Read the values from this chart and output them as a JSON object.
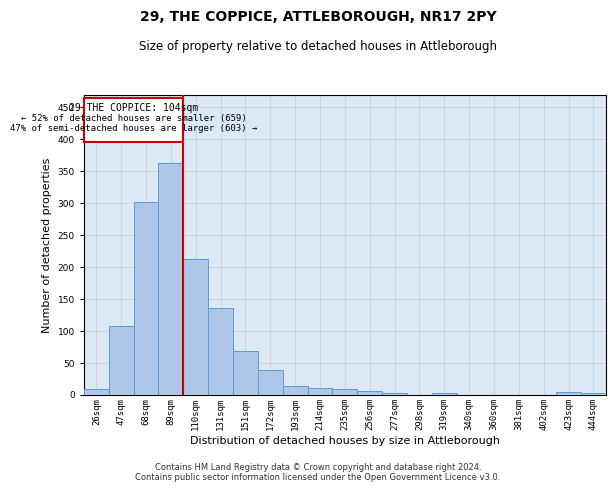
{
  "title": "29, THE COPPICE, ATTLEBOROUGH, NR17 2PY",
  "subtitle": "Size of property relative to detached houses in Attleborough",
  "xlabel": "Distribution of detached houses by size in Attleborough",
  "ylabel": "Number of detached properties",
  "footer_line1": "Contains HM Land Registry data © Crown copyright and database right 2024.",
  "footer_line2": "Contains public sector information licensed under the Open Government Licence v3.0.",
  "categories": [
    "26sqm",
    "47sqm",
    "68sqm",
    "89sqm",
    "110sqm",
    "131sqm",
    "151sqm",
    "172sqm",
    "193sqm",
    "214sqm",
    "235sqm",
    "256sqm",
    "277sqm",
    "298sqm",
    "319sqm",
    "340sqm",
    "360sqm",
    "381sqm",
    "402sqm",
    "423sqm",
    "444sqm"
  ],
  "values": [
    8,
    108,
    301,
    362,
    213,
    136,
    68,
    38,
    13,
    10,
    9,
    6,
    2,
    0,
    2,
    0,
    0,
    0,
    0,
    4,
    3
  ],
  "bar_color": "#aec6e8",
  "bar_edge_color": "#5b9bd5",
  "grid_color": "#cccccc",
  "bg_color": "#dce9f5",
  "annotation_box_color": "#cc0000",
  "annotation_line_color": "#cc0000",
  "property_label": "29 THE COPPICE: 104sqm",
  "smaller_pct": 52,
  "smaller_count": 659,
  "larger_pct": 47,
  "larger_count": 603,
  "vline_x": 3.5,
  "ylim": [
    0,
    470
  ],
  "yticks": [
    0,
    50,
    100,
    150,
    200,
    250,
    300,
    350,
    400,
    450
  ],
  "title_fontsize": 10,
  "subtitle_fontsize": 8.5,
  "xlabel_fontsize": 8,
  "ylabel_fontsize": 8,
  "tick_fontsize": 6.5,
  "footer_fontsize": 6
}
